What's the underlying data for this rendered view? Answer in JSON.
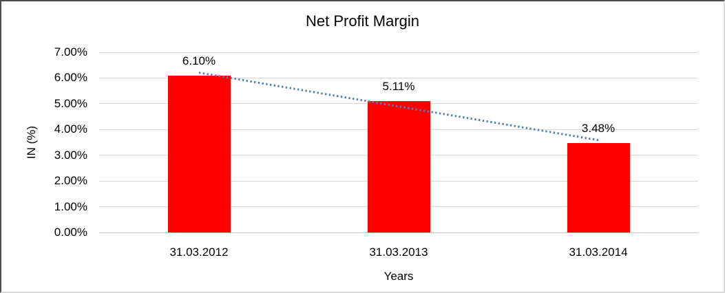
{
  "chart_data": {
    "type": "bar",
    "title": "Net Profit Margin",
    "xlabel": "Years",
    "ylabel": "IN (%)",
    "categories": [
      "31.03.2012",
      "31.03.2013",
      "31.03.2014"
    ],
    "values": [
      6.1,
      5.11,
      3.48
    ],
    "value_labels": [
      "6.10%",
      "5.11%",
      "3.48%"
    ],
    "ylim": [
      0,
      7
    ],
    "ytick_labels": [
      "0.00%",
      "1.00%",
      "2.00%",
      "3.00%",
      "4.00%",
      "5.00%",
      "6.00%",
      "7.00%"
    ],
    "grid": true,
    "legend": false,
    "bar_color": "#ff0000",
    "gridline_color": "#d9d9d9",
    "trendline": {
      "type": "linear",
      "style": "dotted",
      "color": "#4f81bd"
    }
  }
}
